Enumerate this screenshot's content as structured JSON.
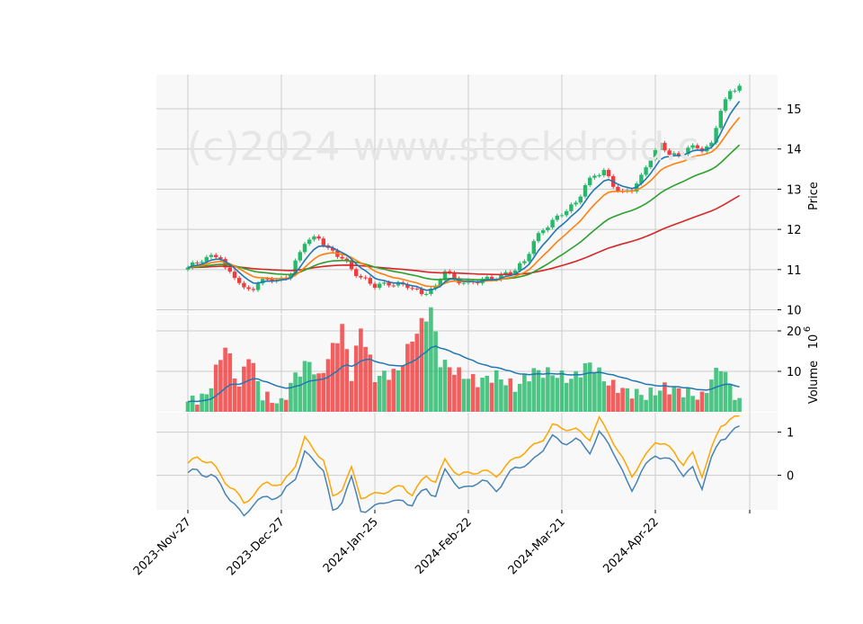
{
  "chart_data": {
    "type": "candlestick",
    "watermark": "(c)2024 www.stockdroid.c",
    "price_panel": {
      "ylabel": "Price",
      "yticks": [
        10,
        11,
        12,
        13,
        14,
        15
      ],
      "ylim": [
        9.9,
        15.85
      ]
    },
    "volume_panel": {
      "ylabel": "Volume",
      "yticks": [
        10,
        20
      ],
      "ylim": [
        0,
        24
      ],
      "multiplier_base": "10",
      "multiplier_exp": "6"
    },
    "indicator_panel": {
      "yticks": [
        0,
        1
      ],
      "ylim": [
        -0.8,
        1.45
      ]
    },
    "x_tick_labels": [
      {
        "label": "2023-Nov-27",
        "index": 0
      },
      {
        "label": "2023-Dec-27",
        "index": 20
      },
      {
        "label": "2024-Jan-25",
        "index": 40
      },
      {
        "label": "2024-Feb-22",
        "index": 60
      },
      {
        "label": "2024-Mar-21",
        "index": 80
      },
      {
        "label": "2024-Apr-22",
        "index": 100
      }
    ],
    "colors": {
      "up": "#26b96a",
      "down": "#f03c3c",
      "ma_short": "#1f77b4",
      "ma_mid": "#ff7f0e",
      "ma_long": "#2ca02c",
      "ma_longest": "#d62728",
      "ind_a": "#4682b4",
      "ind_b": "#ffa500",
      "panel_bg": "#f8f8f8",
      "grid": "#cccccc"
    },
    "price_keypoints": [
      [
        0,
        11.05
      ],
      [
        3,
        11.25
      ],
      [
        6,
        11.35
      ],
      [
        7,
        11.3
      ],
      [
        8,
        11.0
      ],
      [
        10,
        10.85
      ],
      [
        12,
        10.5
      ],
      [
        14,
        10.55
      ],
      [
        17,
        10.8
      ],
      [
        19,
        10.7
      ],
      [
        22,
        10.9
      ],
      [
        25,
        11.7
      ],
      [
        28,
        11.8
      ],
      [
        30,
        11.5
      ],
      [
        33,
        11.3
      ],
      [
        35,
        11.0
      ],
      [
        37,
        10.8
      ],
      [
        40,
        10.6
      ],
      [
        43,
        10.65
      ],
      [
        47,
        10.6
      ],
      [
        50,
        10.4
      ],
      [
        53,
        10.55
      ],
      [
        55,
        11.0
      ],
      [
        57,
        10.75
      ],
      [
        60,
        10.65
      ],
      [
        63,
        10.75
      ],
      [
        66,
        10.8
      ],
      [
        70,
        11.0
      ],
      [
        72,
        11.2
      ],
      [
        74,
        11.7
      ],
      [
        76,
        12.0
      ],
      [
        78,
        12.2
      ],
      [
        80,
        12.4
      ],
      [
        83,
        12.65
      ],
      [
        85,
        13.1
      ],
      [
        87,
        13.35
      ],
      [
        89,
        13.45
      ],
      [
        91,
        13.1
      ],
      [
        93,
        12.9
      ],
      [
        95,
        13.0
      ],
      [
        97,
        13.3
      ],
      [
        99,
        13.8
      ],
      [
        101,
        14.1
      ],
      [
        103,
        13.9
      ],
      [
        105,
        13.8
      ],
      [
        107,
        14.05
      ],
      [
        110,
        14.0
      ],
      [
        112,
        14.1
      ],
      [
        114,
        15.0
      ],
      [
        116,
        15.4
      ],
      [
        118,
        15.6
      ]
    ],
    "vol_keypoints": [
      [
        0,
        2.5
      ],
      [
        4,
        4.0
      ],
      [
        8,
        16.5
      ],
      [
        11,
        6.0
      ],
      [
        13,
        14.5
      ],
      [
        16,
        4.0
      ],
      [
        20,
        2.0
      ],
      [
        23,
        9.0
      ],
      [
        26,
        12.5
      ],
      [
        28,
        8.0
      ],
      [
        33,
        21.0
      ],
      [
        35,
        9.0
      ],
      [
        37,
        21.0
      ],
      [
        40,
        8.5
      ],
      [
        45,
        10.0
      ],
      [
        48,
        18.0
      ],
      [
        52,
        25.5
      ],
      [
        54,
        12.5
      ],
      [
        58,
        9.5
      ],
      [
        62,
        7.5
      ],
      [
        66,
        9.0
      ],
      [
        70,
        6.0
      ],
      [
        74,
        10.0
      ],
      [
        78,
        9.5
      ],
      [
        82,
        8.0
      ],
      [
        86,
        12.0
      ],
      [
        90,
        7.0
      ],
      [
        94,
        5.0
      ],
      [
        98,
        4.0
      ],
      [
        102,
        6.0
      ],
      [
        106,
        5.0
      ],
      [
        110,
        3.5
      ],
      [
        112,
        8.0
      ],
      [
        114,
        11.5
      ],
      [
        116,
        6.5
      ],
      [
        118,
        2.0
      ]
    ],
    "ind_keypoints": [
      [
        0,
        0.28
      ],
      [
        2,
        0.4
      ],
      [
        5,
        0.3
      ],
      [
        8,
        -0.15
      ],
      [
        10,
        -0.35
      ],
      [
        12,
        -0.65
      ],
      [
        14,
        -0.45
      ],
      [
        17,
        -0.15
      ],
      [
        20,
        -0.25
      ],
      [
        23,
        0.25
      ],
      [
        25,
        0.85
      ],
      [
        27,
        0.6
      ],
      [
        29,
        0.35
      ],
      [
        31,
        -0.5
      ],
      [
        33,
        -0.3
      ],
      [
        35,
        0.15
      ],
      [
        37,
        -0.5
      ],
      [
        40,
        -0.45
      ],
      [
        43,
        -0.35
      ],
      [
        46,
        -0.25
      ],
      [
        48,
        -0.45
      ],
      [
        51,
        0.0
      ],
      [
        53,
        -0.15
      ],
      [
        55,
        0.35
      ],
      [
        58,
        0.0
      ],
      [
        60,
        0.05
      ],
      [
        63,
        0.1
      ],
      [
        66,
        0.0
      ],
      [
        70,
        0.4
      ],
      [
        73,
        0.6
      ],
      [
        76,
        0.85
      ],
      [
        78,
        1.15
      ],
      [
        80,
        1.1
      ],
      [
        83,
        1.05
      ],
      [
        86,
        0.85
      ],
      [
        88,
        1.3
      ],
      [
        90,
        1.0
      ],
      [
        92,
        0.55
      ],
      [
        95,
        0.0
      ],
      [
        98,
        0.45
      ],
      [
        100,
        0.8
      ],
      [
        102,
        0.7
      ],
      [
        104,
        0.55
      ],
      [
        106,
        0.25
      ],
      [
        108,
        0.5
      ],
      [
        110,
        0.0
      ],
      [
        112,
        0.6
      ],
      [
        114,
        1.15
      ],
      [
        116,
        1.3
      ],
      [
        118,
        1.35
      ]
    ]
  }
}
